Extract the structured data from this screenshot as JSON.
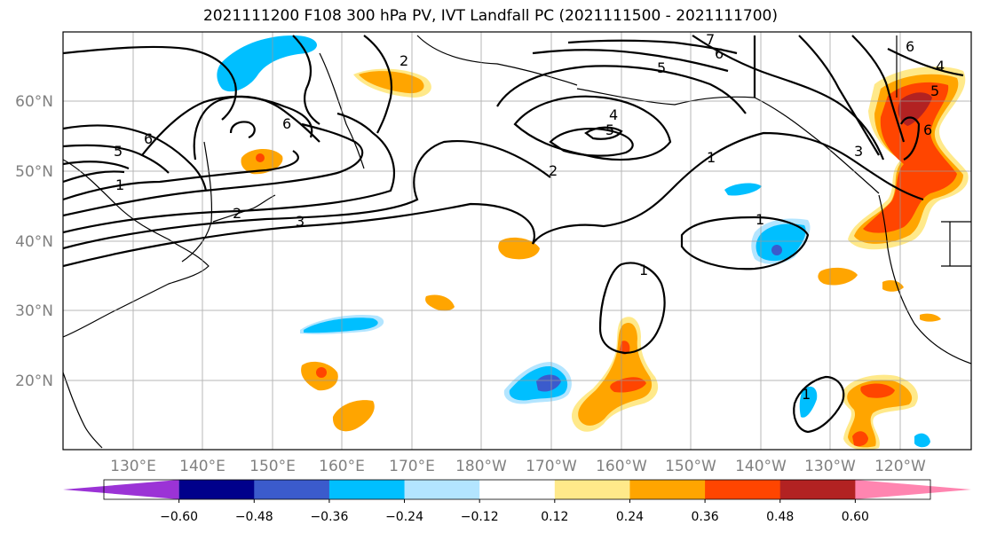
{
  "title": "2021111200 F108 300 hPa PV, IVT Landfall PC (2021111500 - 2021111700)",
  "lat_labels": [
    "60°N",
    "50°N",
    "40°N",
    "30°N",
    "20°N"
  ],
  "lon_labels": [
    "130°E",
    "140°E",
    "150°E",
    "160°E",
    "170°E",
    "180°W",
    "170°W",
    "160°W",
    "150°W",
    "140°W",
    "130°W",
    "120°W"
  ],
  "contour_labels": [
    "2",
    "6",
    "5",
    "7",
    "6",
    "6",
    "5",
    "4",
    "5",
    "2",
    "1",
    "1",
    "1",
    "1",
    "6",
    "5",
    "3",
    "1",
    "3",
    "2",
    "4",
    "6"
  ],
  "colorbar": {
    "colors": [
      "#9b33d6",
      "#00008b",
      "#3b5bcc",
      "#00bfff",
      "#b3e5ff",
      "#ffffff",
      "#ffe98a",
      "#ffa500",
      "#ff4500",
      "#b22222",
      "#ff85b0"
    ],
    "tick_labels": [
      "-0.60",
      "-0.48",
      "-0.36",
      "-0.24",
      "-0.12",
      "0.12",
      "0.24",
      "0.36",
      "0.48",
      "0.60"
    ]
  },
  "shading_colors": {
    "pos_light": "#ffe98a",
    "pos_mid": "#ffa500",
    "pos_strong": "#ff4500",
    "pos_max": "#b22222",
    "neg_light": "#b3e5ff",
    "neg_mid": "#00bfff",
    "neg_strong": "#3b5bcc"
  }
}
